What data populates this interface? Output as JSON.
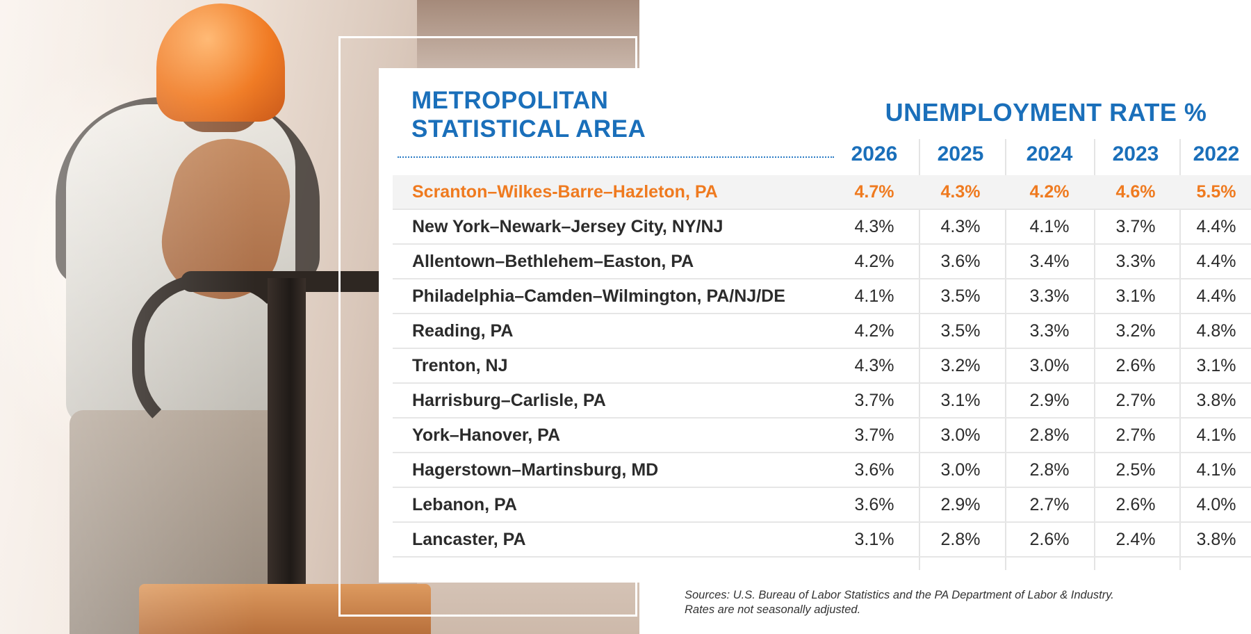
{
  "chart_data": {
    "type": "table",
    "title": "UNEMPLOYMENT RATE %",
    "row_header": "METROPOLITAN STATISTICAL AREA",
    "columns": [
      "2026",
      "2025",
      "2024",
      "2023",
      "2022"
    ],
    "highlight_row": 0,
    "highlight_color": "#ef7a1f",
    "accent_color": "#1a6fba",
    "rows": [
      {
        "area": "Scranton–Wilkes-Barre–Hazleton, PA",
        "values": [
          "4.7%",
          "4.3%",
          "4.2%",
          "4.6%",
          "5.5%"
        ]
      },
      {
        "area": "New York–Newark–Jersey City, NY/NJ",
        "values": [
          "4.3%",
          "4.3%",
          "4.1%",
          "3.7%",
          "4.4%"
        ]
      },
      {
        "area": "Allentown–Bethlehem–Easton, PA",
        "values": [
          "4.2%",
          "3.6%",
          "3.4%",
          "3.3%",
          "4.4%"
        ]
      },
      {
        "area": "Philadelphia–Camden–Wilmington, PA/NJ/DE",
        "values": [
          "4.1%",
          "3.5%",
          "3.3%",
          "3.1%",
          "4.4%"
        ]
      },
      {
        "area": "Reading, PA",
        "values": [
          "4.2%",
          "3.5%",
          "3.3%",
          "3.2%",
          "4.8%"
        ]
      },
      {
        "area": "Trenton, NJ",
        "values": [
          "4.3%",
          "3.2%",
          "3.0%",
          "2.6%",
          "3.1%"
        ]
      },
      {
        "area": "Harrisburg–Carlisle, PA",
        "values": [
          "3.7%",
          "3.1%",
          "2.9%",
          "2.7%",
          "3.8%"
        ]
      },
      {
        "area": "York–Hanover, PA",
        "values": [
          "3.7%",
          "3.0%",
          "2.8%",
          "2.7%",
          "4.1%"
        ]
      },
      {
        "area": "Hagerstown–Martinsburg, MD",
        "values": [
          "3.6%",
          "3.0%",
          "2.8%",
          "2.5%",
          "4.1%"
        ]
      },
      {
        "area": "Lebanon, PA",
        "values": [
          "3.6%",
          "2.9%",
          "2.7%",
          "2.6%",
          "4.0%"
        ]
      },
      {
        "area": "Lancaster, PA",
        "values": [
          "3.1%",
          "2.8%",
          "2.6%",
          "2.4%",
          "3.8%"
        ]
      }
    ]
  },
  "sources": {
    "line1": "Sources: U.S. Bureau of Labor Statistics and the PA Department of Labor & Industry.",
    "line2": "Rates are not seasonally adjusted."
  }
}
